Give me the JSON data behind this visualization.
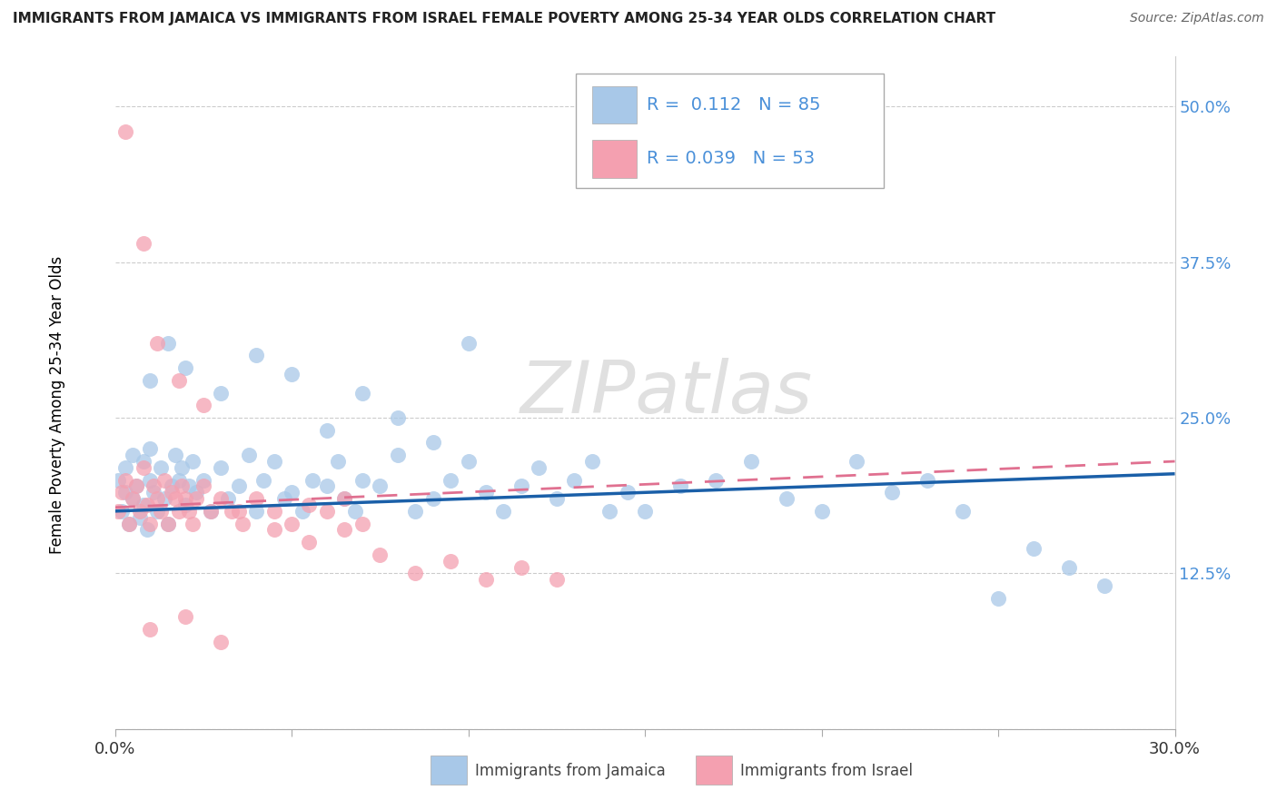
{
  "title": "IMMIGRANTS FROM JAMAICA VS IMMIGRANTS FROM ISRAEL FEMALE POVERTY AMONG 25-34 YEAR OLDS CORRELATION CHART",
  "source": "Source: ZipAtlas.com",
  "ylabel": "Female Poverty Among 25-34 Year Olds",
  "xlim": [
    0.0,
    0.3
  ],
  "ylim": [
    0.0,
    0.54
  ],
  "yticks": [
    0.0,
    0.125,
    0.25,
    0.375,
    0.5
  ],
  "ytick_labels": [
    "",
    "12.5%",
    "25.0%",
    "37.5%",
    "50.0%"
  ],
  "xticks": [
    0.0,
    0.05,
    0.1,
    0.15,
    0.2,
    0.25,
    0.3
  ],
  "xtick_labels": [
    "0.0%",
    "",
    "",
    "",
    "",
    "",
    "30.0%"
  ],
  "color_jamaica": "#a8c8e8",
  "color_israel": "#f4a0b0",
  "line_color_jamaica": "#1a5fa8",
  "line_color_israel": "#e07090",
  "watermark": "ZIPatlas",
  "legend_entry1_r": "0.112",
  "legend_entry1_n": "85",
  "legend_entry2_r": "0.039",
  "legend_entry2_n": "53",
  "legend_color": "#4a90d9",
  "jamaica_x": [
    0.001,
    0.002,
    0.003,
    0.003,
    0.004,
    0.005,
    0.005,
    0.006,
    0.007,
    0.008,
    0.008,
    0.009,
    0.01,
    0.01,
    0.011,
    0.012,
    0.013,
    0.014,
    0.015,
    0.016,
    0.017,
    0.018,
    0.019,
    0.02,
    0.021,
    0.022,
    0.023,
    0.025,
    0.027,
    0.03,
    0.032,
    0.035,
    0.038,
    0.04,
    0.042,
    0.045,
    0.048,
    0.05,
    0.053,
    0.056,
    0.06,
    0.063,
    0.065,
    0.068,
    0.07,
    0.075,
    0.08,
    0.085,
    0.09,
    0.095,
    0.1,
    0.105,
    0.11,
    0.115,
    0.12,
    0.125,
    0.13,
    0.135,
    0.14,
    0.145,
    0.15,
    0.16,
    0.17,
    0.18,
    0.19,
    0.2,
    0.21,
    0.22,
    0.23,
    0.24,
    0.25,
    0.26,
    0.27,
    0.28,
    0.01,
    0.015,
    0.02,
    0.03,
    0.04,
    0.05,
    0.06,
    0.07,
    0.08,
    0.09,
    0.1
  ],
  "jamaica_y": [
    0.2,
    0.175,
    0.19,
    0.21,
    0.165,
    0.185,
    0.22,
    0.195,
    0.17,
    0.215,
    0.18,
    0.16,
    0.2,
    0.225,
    0.19,
    0.175,
    0.21,
    0.185,
    0.165,
    0.195,
    0.22,
    0.2,
    0.21,
    0.18,
    0.195,
    0.215,
    0.19,
    0.2,
    0.175,
    0.21,
    0.185,
    0.195,
    0.22,
    0.175,
    0.2,
    0.215,
    0.185,
    0.19,
    0.175,
    0.2,
    0.195,
    0.215,
    0.185,
    0.175,
    0.2,
    0.195,
    0.22,
    0.175,
    0.185,
    0.2,
    0.215,
    0.19,
    0.175,
    0.195,
    0.21,
    0.185,
    0.2,
    0.215,
    0.175,
    0.19,
    0.175,
    0.195,
    0.2,
    0.215,
    0.185,
    0.175,
    0.215,
    0.19,
    0.2,
    0.175,
    0.105,
    0.145,
    0.13,
    0.115,
    0.28,
    0.31,
    0.29,
    0.27,
    0.3,
    0.285,
    0.24,
    0.27,
    0.25,
    0.23,
    0.31
  ],
  "israel_x": [
    0.001,
    0.002,
    0.003,
    0.004,
    0.005,
    0.006,
    0.007,
    0.008,
    0.009,
    0.01,
    0.011,
    0.012,
    0.013,
    0.014,
    0.015,
    0.016,
    0.017,
    0.018,
    0.019,
    0.02,
    0.021,
    0.022,
    0.023,
    0.025,
    0.027,
    0.03,
    0.033,
    0.036,
    0.04,
    0.045,
    0.05,
    0.055,
    0.06,
    0.065,
    0.07,
    0.003,
    0.008,
    0.012,
    0.018,
    0.025,
    0.035,
    0.045,
    0.055,
    0.065,
    0.075,
    0.085,
    0.095,
    0.105,
    0.115,
    0.125,
    0.01,
    0.02,
    0.03
  ],
  "israel_y": [
    0.175,
    0.19,
    0.2,
    0.165,
    0.185,
    0.195,
    0.175,
    0.21,
    0.18,
    0.165,
    0.195,
    0.185,
    0.175,
    0.2,
    0.165,
    0.19,
    0.185,
    0.175,
    0.195,
    0.185,
    0.175,
    0.165,
    0.185,
    0.195,
    0.175,
    0.185,
    0.175,
    0.165,
    0.185,
    0.175,
    0.165,
    0.18,
    0.175,
    0.185,
    0.165,
    0.48,
    0.39,
    0.31,
    0.28,
    0.26,
    0.175,
    0.16,
    0.15,
    0.16,
    0.14,
    0.125,
    0.135,
    0.12,
    0.13,
    0.12,
    0.08,
    0.09,
    0.07
  ]
}
